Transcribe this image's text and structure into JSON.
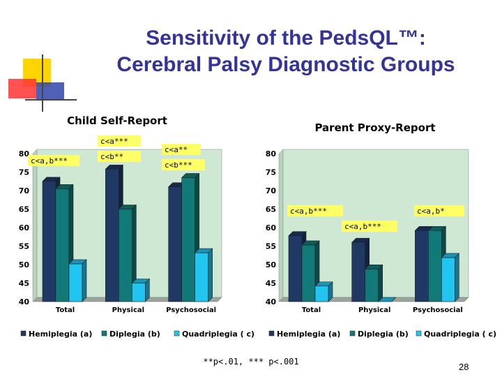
{
  "slide": {
    "title_line1": "Sensitivity of the PedsQL™:",
    "title_line2": "Cerebral Palsy Diagnostic Groups",
    "footnote": "**p<.01, *** p<.001",
    "page_number": "28"
  },
  "colors": {
    "title": "#333399",
    "hemiplegia": "#1f3864",
    "diplegia": "#117a78",
    "quadriplegia": "#22c4f0",
    "plot_area": "#cfe8d3",
    "annotation_bg": "#ffff66"
  },
  "chart_data": [
    {
      "type": "bar",
      "title": "Child Self-Report",
      "categories": [
        "Total",
        "Physical",
        "Psychosocial"
      ],
      "ylim": [
        40,
        80
      ],
      "yticks": [
        40,
        45,
        50,
        55,
        60,
        65,
        70,
        75,
        80
      ],
      "grid": false,
      "legend_position": "bottom",
      "series": [
        {
          "name": "Hemiplegia (a)",
          "values": [
            72.5,
            75.8,
            71.0
          ]
        },
        {
          "name": "Diplegia (b)",
          "values": [
            70.5,
            65.0,
            73.5
          ]
        },
        {
          "name": "Quadriplegia ( c)",
          "values": [
            50.2,
            45.0,
            53.2
          ]
        }
      ],
      "annotations": [
        "c<a,b***",
        "c<a***",
        "c<b**",
        "c<a**",
        "c<b***"
      ]
    },
    {
      "type": "bar",
      "title": "Parent Proxy-Report",
      "categories": [
        "Total",
        "Physical",
        "Psychosocial"
      ],
      "ylim": [
        40,
        80
      ],
      "yticks": [
        40,
        45,
        50,
        55,
        60,
        65,
        70,
        75,
        80
      ],
      "grid": false,
      "legend_position": "bottom",
      "series": [
        {
          "name": "Hemiplegia (a)",
          "values": [
            57.8,
            56.0,
            59.2
          ]
        },
        {
          "name": "Diplegia (b)",
          "values": [
            55.3,
            48.8,
            59.2
          ]
        },
        {
          "name": "Quadriplegia ( c)",
          "values": [
            44.2,
            40.0,
            51.9
          ]
        }
      ],
      "annotations": [
        "c<a,b***",
        "c<a,b***",
        "c<a,b*"
      ]
    }
  ]
}
